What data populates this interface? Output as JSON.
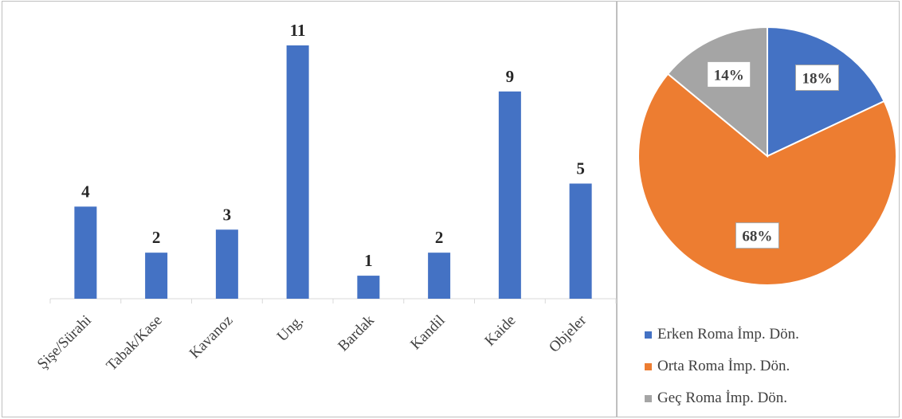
{
  "chart_data": [
    {
      "type": "bar",
      "categories": [
        "Şişe/Sürahi",
        "Tabak/Kase",
        "Kavanoz",
        "Ung.",
        "Bardak",
        "Kandil",
        "Kaide",
        "Objeler"
      ],
      "values": [
        4,
        2,
        3,
        11,
        1,
        2,
        9,
        5
      ],
      "data_labels": [
        "4",
        "2",
        "3",
        "11",
        "1",
        "2",
        "9",
        "5"
      ],
      "color": "#4472C4",
      "ylim": [
        0,
        11
      ]
    },
    {
      "type": "pie",
      "labels": [
        "Erken Roma İmp. Dön.",
        "Orta Roma İmp. Dön.",
        "Geç Roma İmp. Dön."
      ],
      "values": [
        18,
        68,
        14
      ],
      "data_labels": [
        "18%",
        "68%",
        "14%"
      ],
      "colors": [
        "#4472C4",
        "#ED7D31",
        "#A5A5A5"
      ],
      "legend_position": "bottom"
    }
  ]
}
